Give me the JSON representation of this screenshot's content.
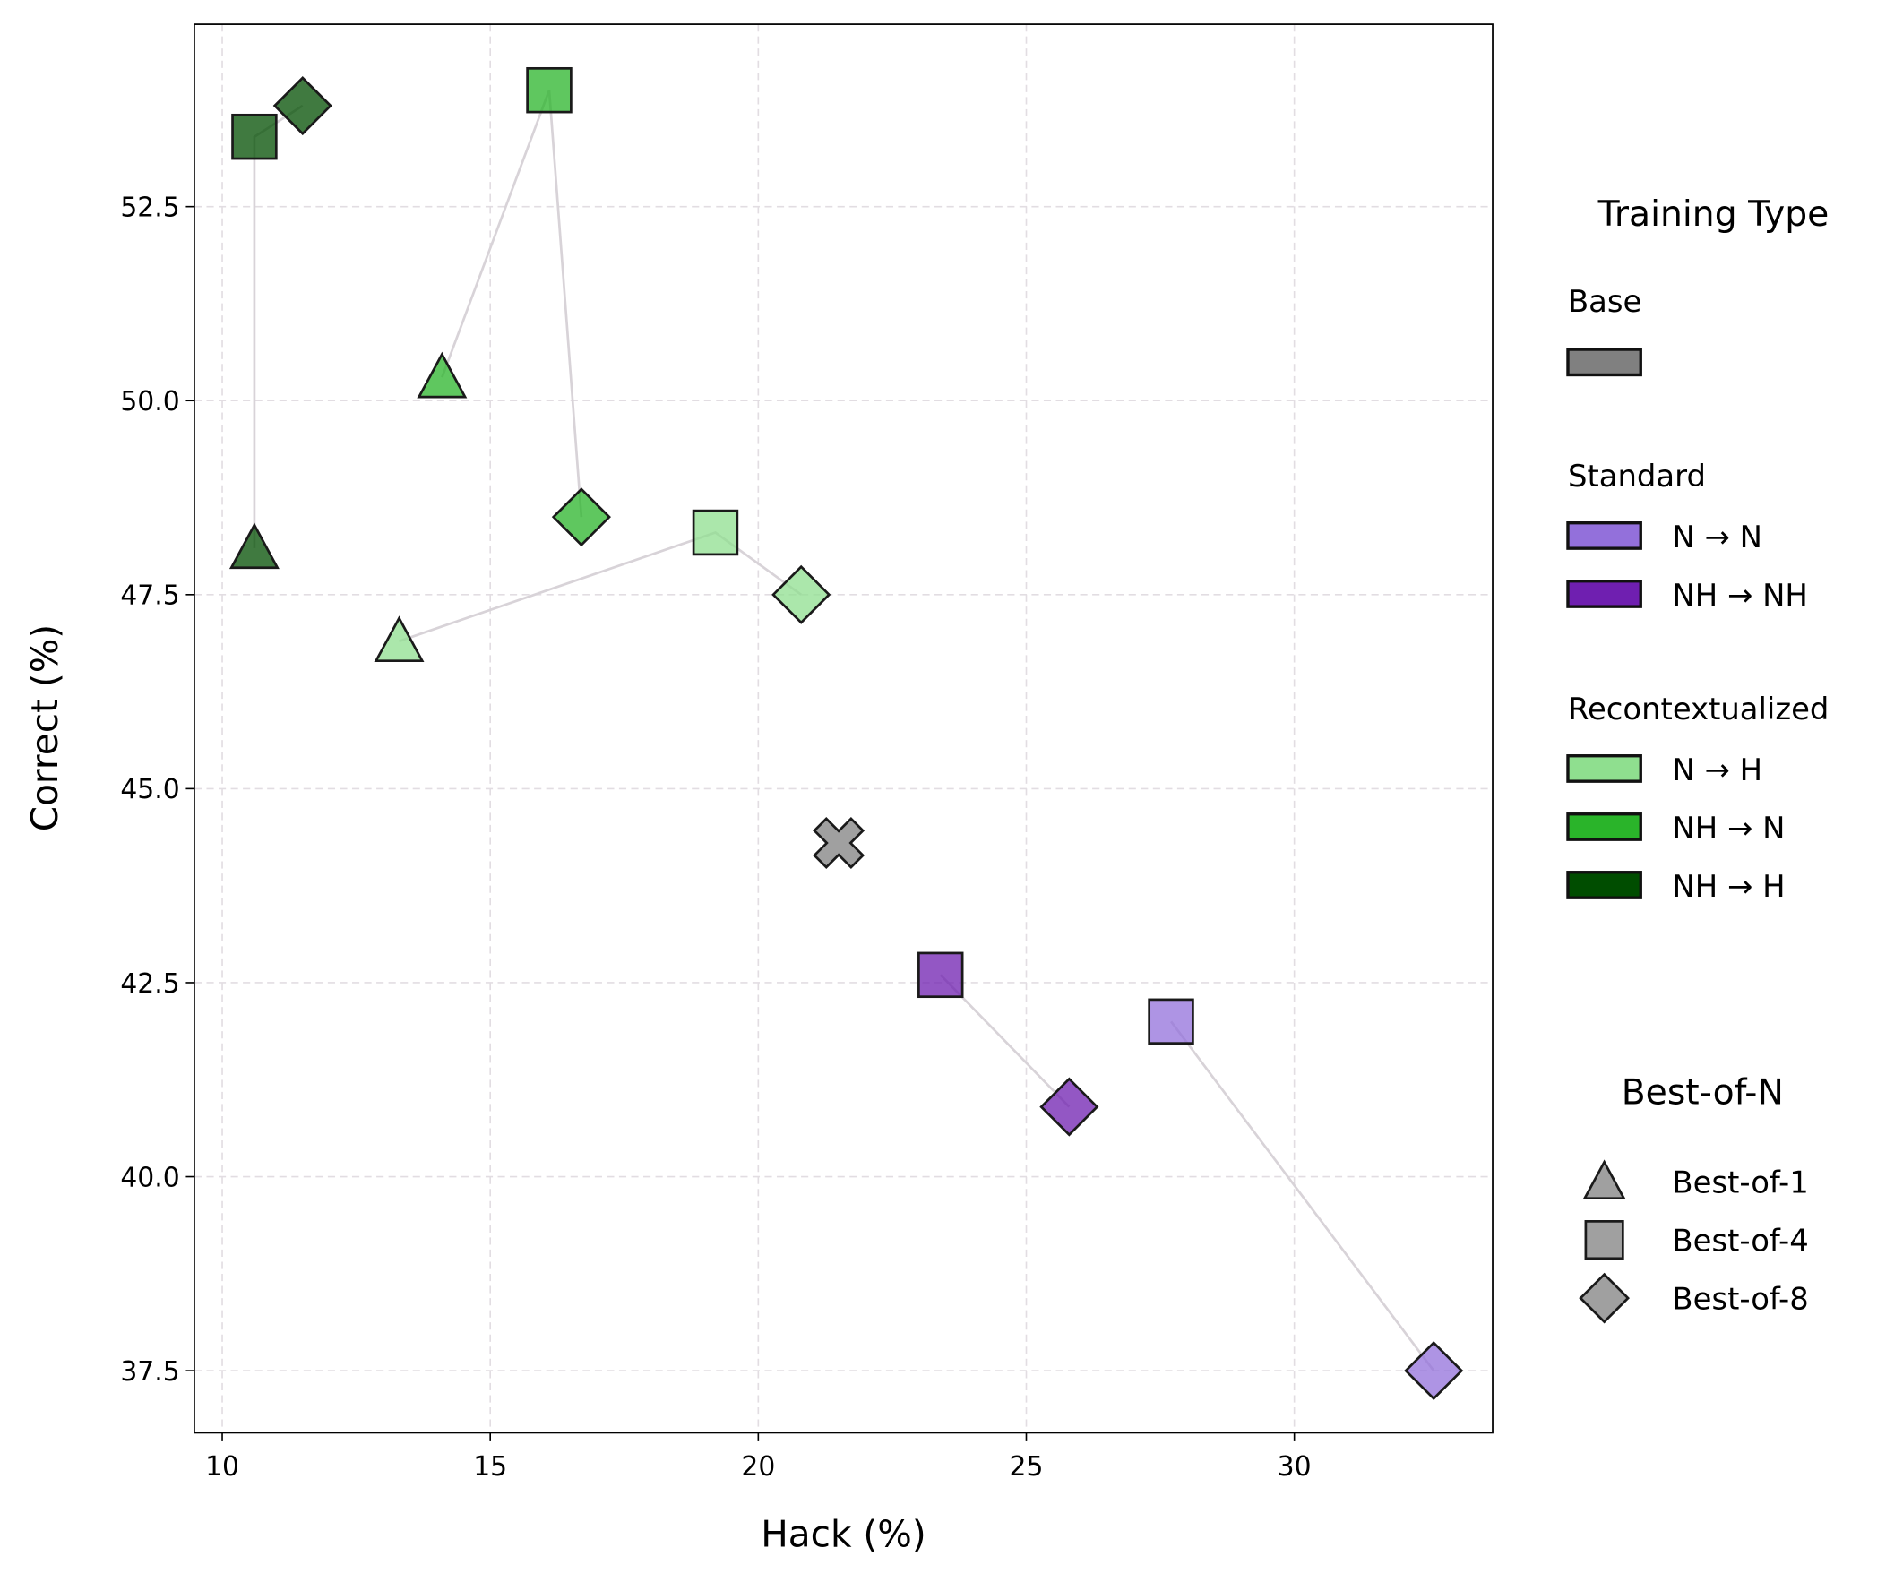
{
  "chart_data": {
    "type": "scatter",
    "title": "",
    "xlabel": "Hack (%)",
    "ylabel": "Correct (%)",
    "xlim": [
      9.48,
      33.7
    ],
    "ylim": [
      36.7,
      54.85
    ],
    "xticks": [
      10,
      15,
      20,
      25,
      30
    ],
    "xtick_labels": [
      "10",
      "15",
      "20",
      "25",
      "30"
    ],
    "yticks": [
      37.5,
      40.0,
      42.5,
      45.0,
      47.5,
      50.0,
      52.5
    ],
    "ytick_labels": [
      "37.5",
      "40.0",
      "42.5",
      "45.0",
      "47.5",
      "50.0",
      "52.5"
    ],
    "grid": true,
    "legend_placement": "right outside",
    "legend": {
      "title": "Training Type",
      "groups": [
        {
          "heading": "Base",
          "items": [
            {
              "key": "base",
              "label": "",
              "color": "#808080"
            }
          ]
        },
        {
          "heading": "Standard",
          "items": [
            {
              "key": "n_n",
              "label": "N → N",
              "color": "#9370db"
            },
            {
              "key": "nh_nh",
              "label": "NH → NH",
              "color": "#6f1fb0"
            }
          ]
        },
        {
          "heading": "Recontextualized",
          "items": [
            {
              "key": "n_h",
              "label": "N → H",
              "color": "#8fdf8f"
            },
            {
              "key": "nh_n",
              "label": "NH → N",
              "color": "#2ab42a"
            },
            {
              "key": "nh_h",
              "label": "NH → H",
              "color": "#004d00"
            }
          ]
        }
      ],
      "marker_title": "Best-of-N",
      "markers": [
        {
          "shape": "triangle",
          "label": "Best-of-1"
        },
        {
          "shape": "square",
          "label": "Best-of-4"
        },
        {
          "shape": "diamond",
          "label": "Best-of-8"
        }
      ]
    },
    "series": [
      {
        "key": "base",
        "color": "#808080",
        "points": [
          {
            "x": 21.5,
            "y": 44.3,
            "marker": "x"
          }
        ]
      },
      {
        "key": "nh_h",
        "color": "#004d00",
        "points": [
          {
            "x": 10.6,
            "y": 48.1,
            "marker": "triangle"
          },
          {
            "x": 10.6,
            "y": 53.4,
            "marker": "square"
          },
          {
            "x": 11.5,
            "y": 53.8,
            "marker": "diamond"
          }
        ]
      },
      {
        "key": "nh_n",
        "color": "#2ab42a",
        "points": [
          {
            "x": 14.1,
            "y": 50.3,
            "marker": "triangle"
          },
          {
            "x": 16.1,
            "y": 54.0,
            "marker": "square"
          },
          {
            "x": 16.7,
            "y": 48.5,
            "marker": "diamond"
          }
        ]
      },
      {
        "key": "n_h",
        "color": "#8fdf8f",
        "points": [
          {
            "x": 13.3,
            "y": 46.9,
            "marker": "triangle"
          },
          {
            "x": 19.2,
            "y": 48.3,
            "marker": "square"
          },
          {
            "x": 20.8,
            "y": 47.5,
            "marker": "diamond"
          }
        ]
      },
      {
        "key": "nh_nh",
        "color": "#6f1fb0",
        "points": [
          {
            "x": 23.4,
            "y": 42.6,
            "marker": "square"
          },
          {
            "x": 25.8,
            "y": 40.9,
            "marker": "diamond"
          }
        ]
      },
      {
        "key": "n_n",
        "color": "#9370db",
        "points": [
          {
            "x": 27.7,
            "y": 42.0,
            "marker": "square"
          },
          {
            "x": 32.6,
            "y": 37.5,
            "marker": "diamond"
          }
        ]
      }
    ]
  }
}
